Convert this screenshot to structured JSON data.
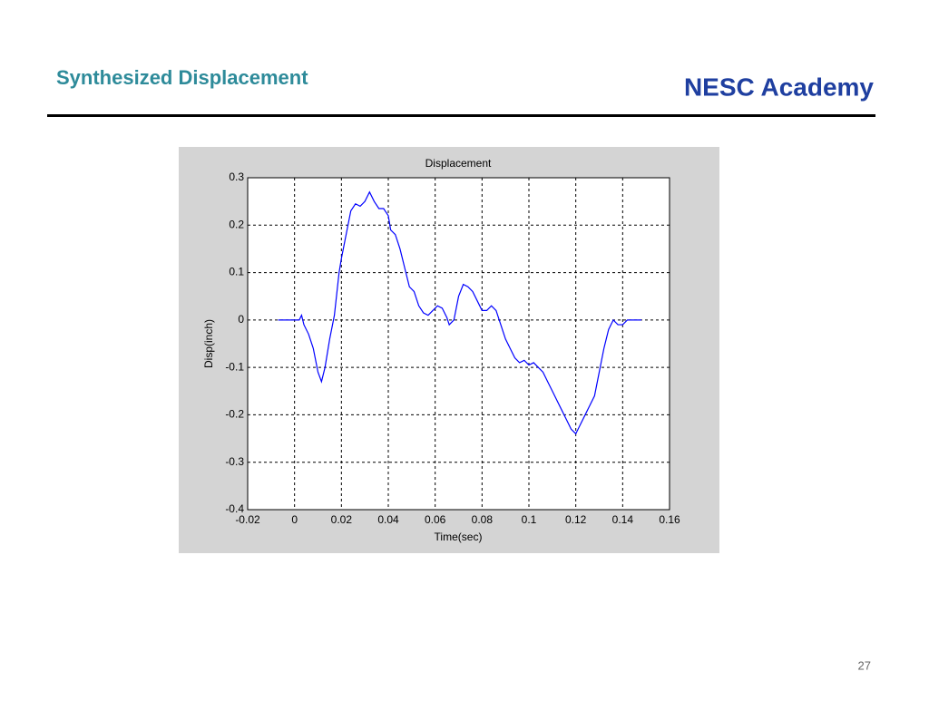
{
  "header": {
    "title": "Synthesized Displacement",
    "brand": "NESC Academy"
  },
  "page_number": "27",
  "chart_data": {
    "type": "line",
    "title": "Displacement",
    "x_label": "Time(sec)",
    "y_label": "Disp(inch)",
    "x": [
      -0.007,
      0.002,
      0.003,
      0.004,
      0.006,
      0.008,
      0.01,
      0.0115,
      0.013,
      0.015,
      0.017,
      0.019,
      0.02,
      0.022,
      0.024,
      0.026,
      0.028,
      0.03,
      0.032,
      0.034,
      0.036,
      0.038,
      0.04,
      0.041,
      0.043,
      0.045,
      0.047,
      0.049,
      0.051,
      0.053,
      0.055,
      0.057,
      0.059,
      0.061,
      0.063,
      0.065,
      0.066,
      0.068,
      0.07,
      0.072,
      0.074,
      0.076,
      0.078,
      0.08,
      0.082,
      0.084,
      0.086,
      0.088,
      0.09,
      0.092,
      0.094,
      0.096,
      0.098,
      0.1,
      0.102,
      0.104,
      0.106,
      0.108,
      0.11,
      0.112,
      0.114,
      0.116,
      0.118,
      0.12,
      0.122,
      0.124,
      0.126,
      0.128,
      0.13,
      0.132,
      0.134,
      0.136,
      0.138,
      0.14,
      0.142,
      0.148
    ],
    "series": [
      {
        "name": "Displacement",
        "color": "#0000ff",
        "values": [
          0,
          0,
          0.01,
          -0.01,
          -0.03,
          -0.06,
          -0.11,
          -0.13,
          -0.1,
          -0.04,
          0.01,
          0.1,
          0.13,
          0.18,
          0.23,
          0.245,
          0.24,
          0.25,
          0.27,
          0.25,
          0.235,
          0.235,
          0.22,
          0.19,
          0.18,
          0.15,
          0.11,
          0.07,
          0.06,
          0.03,
          0.015,
          0.01,
          0.02,
          0.03,
          0.025,
          0.005,
          -0.01,
          0.0,
          0.05,
          0.075,
          0.07,
          0.06,
          0.04,
          0.02,
          0.02,
          0.03,
          0.02,
          -0.01,
          -0.04,
          -0.06,
          -0.08,
          -0.09,
          -0.085,
          -0.095,
          -0.09,
          -0.1,
          -0.11,
          -0.13,
          -0.15,
          -0.17,
          -0.19,
          -0.21,
          -0.23,
          -0.24,
          -0.22,
          -0.2,
          -0.18,
          -0.16,
          -0.11,
          -0.06,
          -0.02,
          0.0,
          -0.01,
          -0.01,
          0.0,
          0.0
        ]
      }
    ],
    "xlim": [
      -0.02,
      0.16
    ],
    "xticks": [
      -0.02,
      0,
      0.02,
      0.04,
      0.06,
      0.08,
      0.1,
      0.12,
      0.14,
      0.16
    ],
    "ylim": [
      -0.4,
      0.3
    ],
    "yticks": [
      -0.4,
      -0.3,
      -0.2,
      -0.1,
      0,
      0.1,
      0.2,
      0.3
    ],
    "grid": true
  }
}
